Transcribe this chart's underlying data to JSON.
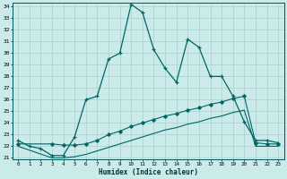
{
  "xlabel": "Humidex (Indice chaleur)",
  "background_color": "#cbeaea",
  "grid_color": "#b0d4d4",
  "line_color": "#006666",
  "x_min": 0,
  "x_max": 23,
  "y_min": 21,
  "y_max": 34,
  "series1_x": [
    0,
    1,
    2,
    3,
    4,
    5,
    6,
    7,
    8,
    9,
    10,
    11,
    12,
    13,
    14,
    15,
    16,
    17,
    18,
    19,
    20,
    21,
    22,
    23
  ],
  "series1_y": [
    22.5,
    22.0,
    21.8,
    21.2,
    21.2,
    22.8,
    26.0,
    26.3,
    29.5,
    30.0,
    34.2,
    33.5,
    30.3,
    28.7,
    27.5,
    31.2,
    30.5,
    28.0,
    28.0,
    26.3,
    24.1,
    22.5,
    22.5,
    22.3
  ],
  "series2_x": [
    0,
    3,
    4,
    5,
    6,
    7,
    8,
    9,
    10,
    11,
    12,
    13,
    14,
    15,
    16,
    17,
    18,
    19,
    20,
    21,
    22,
    23
  ],
  "series2_y": [
    22.2,
    22.2,
    22.1,
    22.1,
    22.2,
    22.5,
    23.0,
    23.3,
    23.7,
    24.0,
    24.3,
    24.6,
    24.8,
    25.1,
    25.3,
    25.6,
    25.8,
    26.1,
    26.3,
    22.3,
    22.2,
    22.2
  ],
  "series3_x": [
    0,
    3,
    4,
    5,
    6,
    7,
    8,
    9,
    10,
    11,
    12,
    13,
    14,
    15,
    16,
    17,
    18,
    19,
    20,
    21,
    22,
    23
  ],
  "series3_y": [
    22.0,
    21.0,
    21.0,
    21.1,
    21.3,
    21.6,
    21.9,
    22.2,
    22.5,
    22.8,
    23.1,
    23.4,
    23.6,
    23.9,
    24.1,
    24.4,
    24.6,
    24.9,
    25.1,
    22.0,
    22.0,
    22.0
  ],
  "yticks": [
    21,
    22,
    23,
    24,
    25,
    26,
    27,
    28,
    29,
    30,
    31,
    32,
    33,
    34
  ],
  "xticks": [
    0,
    1,
    2,
    3,
    4,
    5,
    6,
    7,
    8,
    9,
    10,
    11,
    12,
    13,
    14,
    15,
    16,
    17,
    18,
    19,
    20,
    21,
    22,
    23
  ]
}
